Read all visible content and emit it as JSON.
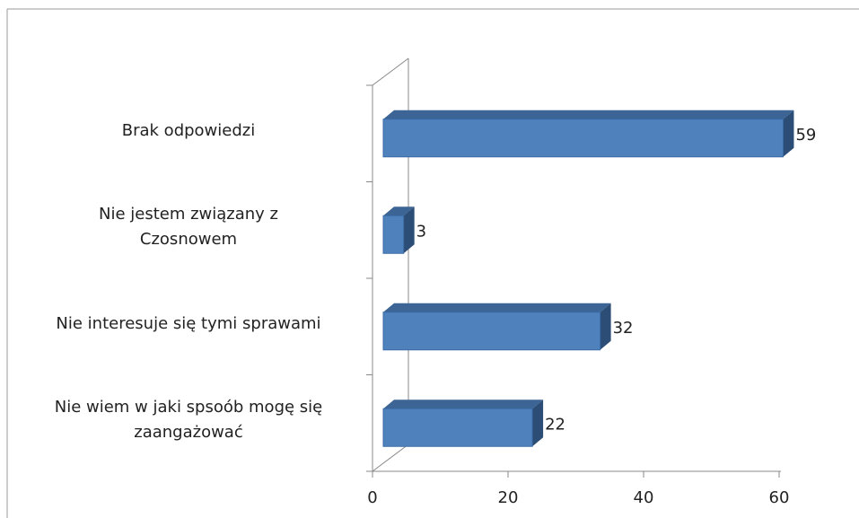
{
  "chart_data": {
    "type": "bar",
    "orientation": "horizontal",
    "three_d": true,
    "categories": [
      "Brak odpowiedzi",
      "Nie jestem związany z\nCzosnowem",
      "Nie interesuje się tymi sprawami",
      "Nie wiem w jaki spsoób mogę się\nzaangażować"
    ],
    "values": [
      59,
      3,
      32,
      22
    ],
    "color": "#4f81bd",
    "xlim": [
      0,
      60
    ],
    "xticks": [
      0,
      20,
      40,
      60
    ]
  }
}
